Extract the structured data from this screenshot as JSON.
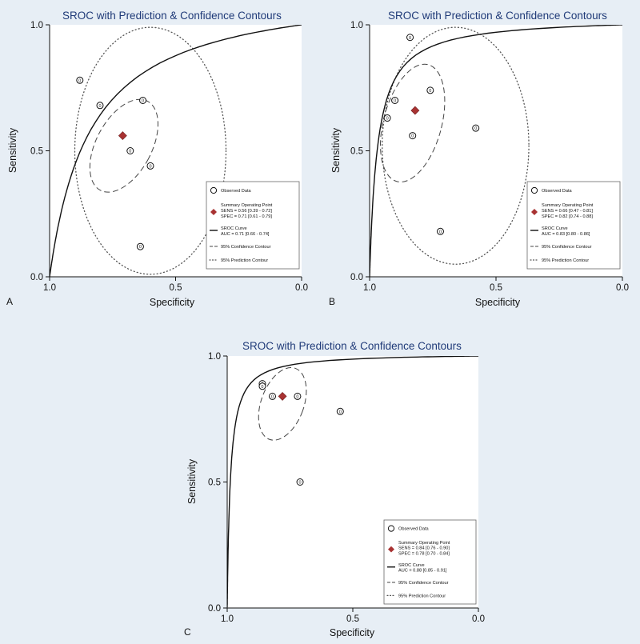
{
  "chart_data": [
    {
      "type": "scatter",
      "panel_letter": "A",
      "title": "SROC with Prediction & Confidence Contours",
      "xlabel": "Specificity",
      "ylabel": "Sensitivity",
      "xlim": [
        1.0,
        0.0
      ],
      "ylim": [
        0.0,
        1.0
      ],
      "x_ticks": [
        "1.0",
        "0.5",
        "0.0"
      ],
      "y_ticks": [
        "0.0",
        "0.5",
        "1.0"
      ],
      "legend_position": "bottom-right",
      "observed": [
        {
          "spec": 0.88,
          "sens": 0.78,
          "n": "0"
        },
        {
          "spec": 0.8,
          "sens": 0.68,
          "n": "0"
        },
        {
          "spec": 0.63,
          "sens": 0.7,
          "n": "0"
        },
        {
          "spec": 0.68,
          "sens": 0.5,
          "n": "0"
        },
        {
          "spec": 0.6,
          "sens": 0.44,
          "n": "0"
        },
        {
          "spec": 0.64,
          "sens": 0.12,
          "n": "0"
        }
      ],
      "summary_point": {
        "spec": 0.71,
        "sens": 0.56
      },
      "auc": 0.71,
      "confidence_contour": {
        "cx": 0.705,
        "cy": 0.52,
        "rx": 0.11,
        "ry": 0.2,
        "angle": 28
      },
      "prediction_contour": {
        "cx": 0.6,
        "cy": 0.5,
        "rx": 0.3,
        "ry": 0.49,
        "angle": 0
      },
      "legend": {
        "observed": "Observed Data",
        "summary_title": "Summary Operating Point",
        "summary_sens": "SENS = 0.56 [0.39 - 0.72]",
        "summary_spec": "SPEC = 0.71 [0.61 - 0.79]",
        "curve_title": "SROC Curve",
        "curve_auc": "AUC = 0.71 [0.66 - 0.74]",
        "confidence": "95% Confidence Contour",
        "prediction": "95% Prediction Contour"
      }
    },
    {
      "type": "scatter",
      "panel_letter": "B",
      "title": "SROC with Prediction & Confidence Contours",
      "xlabel": "Specificity",
      "ylabel": "Sensitivity",
      "xlim": [
        1.0,
        0.0
      ],
      "ylim": [
        0.0,
        1.0
      ],
      "x_ticks": [
        "1.0",
        "0.5",
        "0.0"
      ],
      "y_ticks": [
        "0.0",
        "0.5",
        "1.0"
      ],
      "legend_position": "bottom-right",
      "observed": [
        {
          "spec": 0.84,
          "sens": 0.95,
          "n": "0"
        },
        {
          "spec": 0.9,
          "sens": 0.7,
          "n": "0"
        },
        {
          "spec": 0.93,
          "sens": 0.63,
          "n": "0"
        },
        {
          "spec": 0.76,
          "sens": 0.74,
          "n": "0"
        },
        {
          "spec": 0.83,
          "sens": 0.56,
          "n": "0"
        },
        {
          "spec": 0.58,
          "sens": 0.59,
          "n": "0"
        },
        {
          "spec": 0.72,
          "sens": 0.18,
          "n": "0"
        }
      ],
      "summary_point": {
        "spec": 0.82,
        "sens": 0.66
      },
      "auc": 0.83,
      "confidence_contour": {
        "cx": 0.83,
        "cy": 0.61,
        "rx": 0.115,
        "ry": 0.24,
        "angle": 15
      },
      "prediction_contour": {
        "cx": 0.66,
        "cy": 0.52,
        "rx": 0.29,
        "ry": 0.47,
        "angle": 0
      },
      "legend": {
        "observed": "Observed Data",
        "summary_title": "Summary Operating Point",
        "summary_sens": "SENS = 0.66 [0.47 - 0.81]",
        "summary_spec": "SPEC = 0.82 [0.74 - 0.88]",
        "curve_title": "SROC Curve",
        "curve_auc": "AUC = 0.83 [0.80 - 0.86]",
        "confidence": "95% Confidence Contour",
        "prediction": "95% Prediction Contour"
      }
    },
    {
      "type": "scatter",
      "panel_letter": "C",
      "title": "SROC with Prediction & Confidence Contours",
      "xlabel": "Specificity",
      "ylabel": "Sensitivity",
      "xlim": [
        1.0,
        0.0
      ],
      "ylim": [
        0.0,
        1.0
      ],
      "x_ticks": [
        "1.0",
        "0.5",
        "0.0"
      ],
      "y_ticks": [
        "0.0",
        "0.5",
        "1.0"
      ],
      "legend_position": "bottom-right",
      "observed": [
        {
          "spec": 0.86,
          "sens": 0.89,
          "n": "0"
        },
        {
          "spec": 0.86,
          "sens": 0.88,
          "n": "0"
        },
        {
          "spec": 0.82,
          "sens": 0.84,
          "n": "0"
        },
        {
          "spec": 0.72,
          "sens": 0.84,
          "n": "0"
        },
        {
          "spec": 0.55,
          "sens": 0.78,
          "n": "0"
        },
        {
          "spec": 0.71,
          "sens": 0.5,
          "n": "0"
        }
      ],
      "summary_point": {
        "spec": 0.78,
        "sens": 0.84
      },
      "auc": 0.88,
      "confidence_contour": {
        "cx": 0.78,
        "cy": 0.81,
        "rx": 0.085,
        "ry": 0.15,
        "angle": 20
      },
      "prediction_contour": null,
      "legend": {
        "observed": "Observed Data",
        "summary_title": "Summary Operating Point",
        "summary_sens": "SENS = 0.84 [0.76 - 0.90]",
        "summary_spec": "SPEC = 0.78 [0.70 - 0.84]",
        "curve_title": "SROC Curve",
        "curve_auc": "AUC = 0.88 [0.85 - 0.91]",
        "confidence": "95% Confidence Contour",
        "prediction": "95% Prediction Contour"
      }
    }
  ],
  "colors": {
    "background": "#e7eef5",
    "plot_background": "#ffffff",
    "title": "#1f3a78",
    "summary_point": "#a83232",
    "curve": "#111111"
  }
}
